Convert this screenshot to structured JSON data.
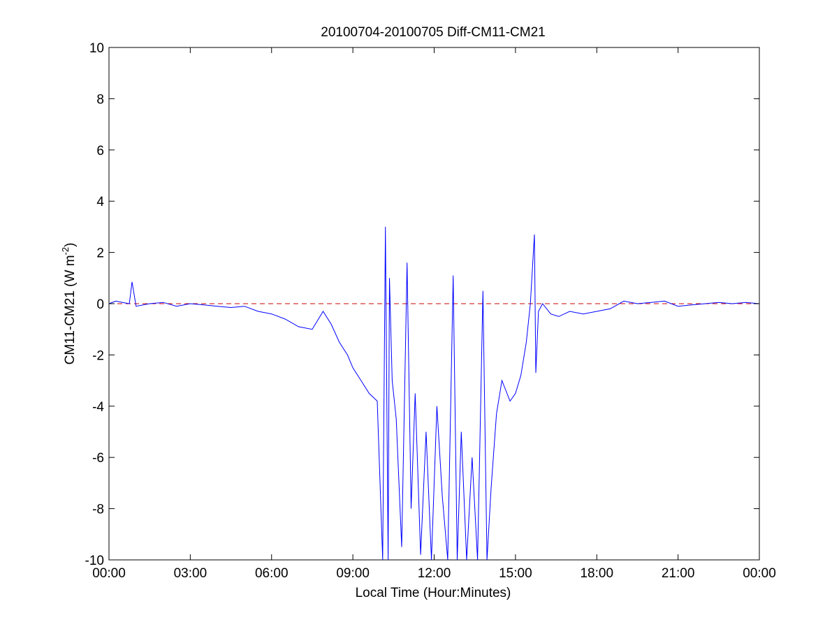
{
  "chart_data": {
    "type": "line",
    "title": "20100704-20100705 Diff-CM11-CM21",
    "xlabel": "Local Time (Hour:Minutes)",
    "ylabel_main": "CM11-CM21 (W m",
    "ylabel_sup": "-2",
    "ylabel_close": ")",
    "x_range_hours": [
      0,
      24
    ],
    "ylim": [
      -10,
      10
    ],
    "x_ticks": [
      {
        "hour": 0,
        "label": "00:00"
      },
      {
        "hour": 3,
        "label": "03:00"
      },
      {
        "hour": 6,
        "label": "06:00"
      },
      {
        "hour": 9,
        "label": "09:00"
      },
      {
        "hour": 12,
        "label": "12:00"
      },
      {
        "hour": 15,
        "label": "15:00"
      },
      {
        "hour": 18,
        "label": "18:00"
      },
      {
        "hour": 21,
        "label": "21:00"
      },
      {
        "hour": 24,
        "label": "00:00"
      }
    ],
    "y_ticks": [
      {
        "value": 10,
        "label": "10"
      },
      {
        "value": 8,
        "label": "8"
      },
      {
        "value": 6,
        "label": "6"
      },
      {
        "value": 4,
        "label": "4"
      },
      {
        "value": 2,
        "label": "2"
      },
      {
        "value": 0,
        "label": "0"
      },
      {
        "value": -2,
        "label": "-2"
      },
      {
        "value": -4,
        "label": "-4"
      },
      {
        "value": -6,
        "label": "-6"
      },
      {
        "value": -8,
        "label": "-8"
      },
      {
        "value": -10,
        "label": "-10"
      }
    ],
    "grid": false,
    "reference_line": {
      "y": 0,
      "style": "dashed",
      "color": "#cc0000"
    },
    "series": [
      {
        "color": "#0000ff",
        "x_hours": [
          0.0,
          0.25,
          0.5,
          0.75,
          0.85,
          1.0,
          1.5,
          2.0,
          2.5,
          3.0,
          3.5,
          4.0,
          4.5,
          5.0,
          5.5,
          6.0,
          6.5,
          7.0,
          7.5,
          7.9,
          8.2,
          8.5,
          8.8,
          9.0,
          9.3,
          9.6,
          9.9,
          10.1,
          10.2,
          10.3,
          10.35,
          10.45,
          10.6,
          10.8,
          11.0,
          11.15,
          11.3,
          11.5,
          11.7,
          11.9,
          12.1,
          12.3,
          12.5,
          12.7,
          12.85,
          13.0,
          13.2,
          13.4,
          13.6,
          13.8,
          13.95,
          14.1,
          14.3,
          14.5,
          14.8,
          15.0,
          15.2,
          15.4,
          15.55,
          15.7,
          15.75,
          15.85,
          16.0,
          16.3,
          16.6,
          17.0,
          17.5,
          18.0,
          18.5,
          19.0,
          19.5,
          20.0,
          20.5,
          21.0,
          21.5,
          22.0,
          22.5,
          23.0,
          23.5,
          24.0
        ],
        "y": [
          0.0,
          0.1,
          0.05,
          0.0,
          0.85,
          -0.1,
          0.0,
          0.05,
          -0.1,
          0.0,
          -0.05,
          -0.1,
          -0.15,
          -0.1,
          -0.3,
          -0.4,
          -0.6,
          -0.9,
          -1.0,
          -0.3,
          -0.8,
          -1.5,
          -2.0,
          -2.5,
          -3.0,
          -3.5,
          -3.8,
          -10.0,
          3.0,
          -10.0,
          1.0,
          -3.0,
          -4.5,
          -9.5,
          1.6,
          -8.0,
          -3.5,
          -9.8,
          -5.0,
          -10.0,
          -4.0,
          -7.5,
          -10.0,
          1.1,
          -10.0,
          -5.0,
          -10.0,
          -6.0,
          -10.0,
          0.5,
          -10.0,
          -7.2,
          -4.3,
          -3.0,
          -3.8,
          -3.5,
          -2.8,
          -1.5,
          0.0,
          2.7,
          -2.7,
          -0.3,
          0.0,
          -0.4,
          -0.5,
          -0.3,
          -0.4,
          -0.3,
          -0.2,
          0.1,
          0.0,
          0.05,
          0.1,
          -0.1,
          -0.05,
          0.0,
          0.05,
          0.0,
          0.05,
          0.0
        ]
      }
    ]
  }
}
